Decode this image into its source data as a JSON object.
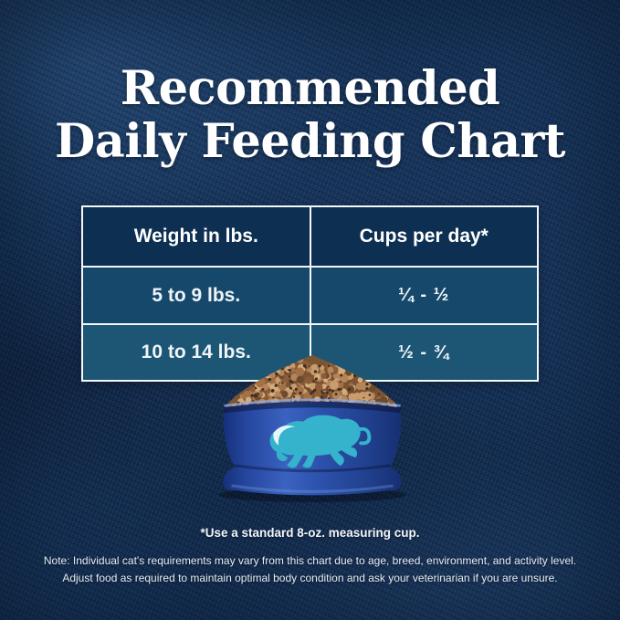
{
  "title": {
    "line1": "Recommended",
    "line2": "Daily Feeding Chart"
  },
  "table": {
    "headers": [
      "Weight in lbs.",
      "Cups per day*"
    ],
    "rows": [
      [
        "5 to 9 lbs.",
        "¼ - ½"
      ],
      [
        "10 to 14 lbs.",
        "½ - ¾"
      ]
    ]
  },
  "footnote": "*Use a standard 8-oz. measuring cup.",
  "note": {
    "line1": "Note: Individual cat's requirements may vary from this chart due to age, breed, environment, and activity level.",
    "line2": "Adjust food as required to maintain optimal body condition and ask your veterinarian if you are unsure."
  },
  "graphic": {
    "bowl_color": "#2c4fa4",
    "logo_color": "#35b2cc",
    "logo_patch_color": "#e4f6f9",
    "kibble_palette": [
      "#c99c6d",
      "#b5855a",
      "#a27148",
      "#8a5c38",
      "#6e4a2c",
      "#d5ab7c"
    ],
    "kibble_speck_color": "#3d2c1e"
  },
  "colors": {
    "background": "#143259",
    "table_header_bg": "#0d2f52",
    "table_row1_bg": "#16486b",
    "table_row2_bg": "#1d5675",
    "table_border": "#f4f8fb",
    "title_text": "#ffffff"
  },
  "chart_data": {
    "type": "table",
    "title": "Recommended Daily Feeding Chart",
    "columns": [
      "Weight in lbs.",
      "Cups per day*"
    ],
    "rows": [
      [
        "5 to 9 lbs.",
        "¼ - ½"
      ],
      [
        "10 to 14 lbs.",
        "½ - ¾"
      ]
    ],
    "footnote": "*Use a standard 8-oz. measuring cup.",
    "note": "Note: Individual cat's requirements may vary from this chart due to age, breed, environment, and activity level. Adjust food as required to maintain optimal body condition and ask your veterinarian if you are unsure."
  }
}
